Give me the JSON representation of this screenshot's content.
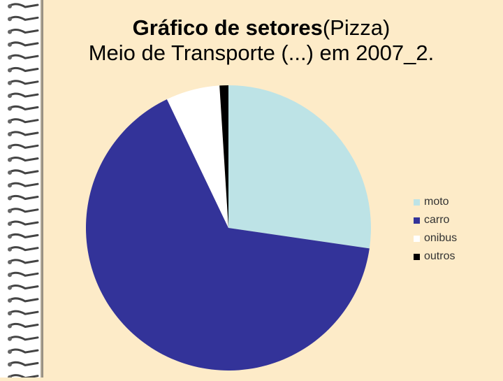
{
  "title": {
    "line1_bold": "Gráfico de setores",
    "line1_rest": "(Pizza)",
    "line2": "Meio de Transporte (...) em 2007_2."
  },
  "chart_data": {
    "type": "pie",
    "categories": [
      "moto",
      "carro",
      "onibus",
      "outros"
    ],
    "values": [
      27.3,
      65.6,
      6.1,
      1.0
    ],
    "colors": [
      "#bde3e6",
      "#333399",
      "#ffffff",
      "#000000"
    ],
    "start_angle_deg": 0,
    "direction": "clockwise",
    "legend_position": "right"
  }
}
